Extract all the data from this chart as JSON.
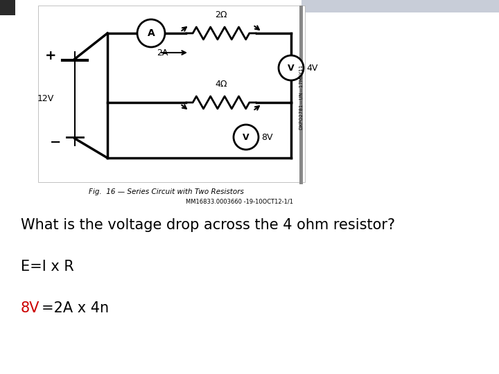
{
  "bg_color": "#ffffff",
  "circuit_box_color": "#ffffff",
  "circuit_box_border": "#cccccc",
  "question_text": "What is the voltage drop across the 4 ohm resistor?",
  "formula_text": "E=I x R",
  "answer_part1": "8V",
  "answer_part2": "=2A x 4n",
  "question_fontsize": 15,
  "formula_fontsize": 15,
  "answer_fontsize": 15,
  "answer_color": "#cc0000",
  "text_color": "#000000",
  "top_strip_color": "#c8cdd8",
  "dark_sq_color": "#2a2a2a",
  "vert_strip_color": "#888888",
  "right_bg_color": "#ffffff",
  "caption_text": "Fig.  16 — Series Circuit with Two Resistors",
  "watermark_text": "MM16833.0003660 -19-10OCT12-1/1",
  "vert_text": "DXPO2781—UN—17MAY11"
}
